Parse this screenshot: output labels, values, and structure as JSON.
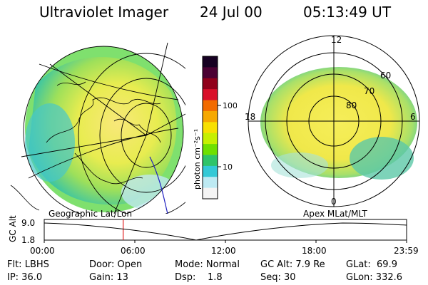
{
  "header": {
    "title": "Ultraviolet Imager",
    "date": "24 Jul 00",
    "time": "05:13:49 UT"
  },
  "colorbar": {
    "label": "photon cm⁻²s⁻¹",
    "ticks": [
      "100",
      "10"
    ],
    "colors": [
      "#160022",
      "#4b0033",
      "#90001b",
      "#d9102a",
      "#f26b00",
      "#f6a800",
      "#f8e000",
      "#c6f000",
      "#6fe000",
      "#2fc46a",
      "#33c9d6",
      "#bdeaf3",
      "#f4f4f4"
    ]
  },
  "maps": {
    "left_label": "Geographic Lat/Lon",
    "right_label": "Apex MLat/MLT"
  },
  "polar": {
    "mlt_labels": [
      "12",
      "18",
      "6",
      "0"
    ],
    "lat_labels": [
      "60",
      "70",
      "80"
    ]
  },
  "timeline": {
    "axis_title": "GC Alt",
    "y_labels": [
      "9.0",
      "1.8"
    ],
    "x_labels": [
      "00:00",
      "06:00",
      "12:00",
      "18:00",
      "23:59"
    ],
    "marker_time_hours": 5.23
  },
  "status": {
    "row1": [
      "Flt: LBHS",
      "Door: Open",
      "Mode: Normal",
      "GC Alt: 7.9 Re",
      "GLat:  69.9"
    ],
    "row2": [
      "IP: 36.0",
      "Gain: 13",
      "Dsp:    1.8",
      "Seq: 30",
      "GLon: 332.6"
    ]
  }
}
